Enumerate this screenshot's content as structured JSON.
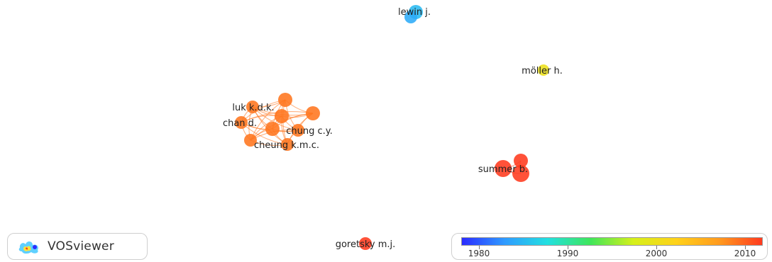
{
  "network": {
    "nodes": [
      {
        "id": "lewin",
        "label": "lewin j.",
        "year": 1985
      },
      {
        "id": "lewin_b",
        "label": "",
        "year": 1984
      },
      {
        "id": "moller",
        "label": "möller h.",
        "year": 2000
      },
      {
        "id": "luk",
        "label": "luk k.d.k.",
        "year": 2009
      },
      {
        "id": "c_top",
        "label": "",
        "year": 2009
      },
      {
        "id": "c_mid",
        "label": "",
        "year": 2009
      },
      {
        "id": "c_right",
        "label": "",
        "year": 2009
      },
      {
        "id": "chan",
        "label": "chan d.",
        "year": 2009
      },
      {
        "id": "c_center",
        "label": "",
        "year": 2009
      },
      {
        "id": "chung",
        "label": "chung c.y.",
        "year": 2009
      },
      {
        "id": "c_bl",
        "label": "",
        "year": 2009
      },
      {
        "id": "cheung",
        "label": "cheung k.m.c.",
        "year": 2009
      },
      {
        "id": "summer",
        "label": "summer b.",
        "year": 2012
      },
      {
        "id": "summer_a",
        "label": "",
        "year": 2012
      },
      {
        "id": "summer_b",
        "label": "",
        "year": 2012
      },
      {
        "id": "goretsky",
        "label": "goretsky m.j.",
        "year": 2012
      }
    ],
    "links": [
      [
        "luk",
        "c_top"
      ],
      [
        "luk",
        "c_mid"
      ],
      [
        "luk",
        "c_right"
      ],
      [
        "luk",
        "chan"
      ],
      [
        "luk",
        "c_center"
      ],
      [
        "luk",
        "chung"
      ],
      [
        "luk",
        "c_bl"
      ],
      [
        "luk",
        "cheung"
      ],
      [
        "c_top",
        "c_mid"
      ],
      [
        "c_top",
        "c_right"
      ],
      [
        "c_top",
        "chan"
      ],
      [
        "c_top",
        "c_center"
      ],
      [
        "c_top",
        "chung"
      ],
      [
        "c_top",
        "c_bl"
      ],
      [
        "c_top",
        "cheung"
      ],
      [
        "c_mid",
        "c_right"
      ],
      [
        "c_mid",
        "chan"
      ],
      [
        "c_mid",
        "c_center"
      ],
      [
        "c_mid",
        "chung"
      ],
      [
        "c_mid",
        "c_bl"
      ],
      [
        "c_mid",
        "cheung"
      ],
      [
        "c_right",
        "chan"
      ],
      [
        "c_right",
        "c_center"
      ],
      [
        "c_right",
        "chung"
      ],
      [
        "c_right",
        "c_bl"
      ],
      [
        "c_right",
        "cheung"
      ],
      [
        "chan",
        "c_center"
      ],
      [
        "chan",
        "chung"
      ],
      [
        "chan",
        "c_bl"
      ],
      [
        "chan",
        "cheung"
      ],
      [
        "c_center",
        "chung"
      ],
      [
        "c_center",
        "c_bl"
      ],
      [
        "c_center",
        "cheung"
      ],
      [
        "chung",
        "c_bl"
      ],
      [
        "chung",
        "cheung"
      ],
      [
        "c_bl",
        "cheung"
      ],
      [
        "summer",
        "summer_a"
      ],
      [
        "summer",
        "summer_b"
      ],
      [
        "summer_a",
        "summer_b"
      ],
      [
        "lewin",
        "lewin_b"
      ]
    ]
  },
  "logo": {
    "text": "VOSviewer",
    "icon": "vosviewer-logo-icon"
  },
  "legend": {
    "ticks": [
      "1980",
      "1990",
      "2000",
      "2010"
    ],
    "range": [
      1978,
      2012
    ],
    "gradient": [
      "#2b2bff",
      "#2f9bff",
      "#22e0e0",
      "#3fe65a",
      "#d6f01a",
      "#ffd21a",
      "#ff9a1e",
      "#ff3a1e"
    ]
  },
  "colors": {
    "link": "#f5a35a",
    "label": "#222222"
  }
}
